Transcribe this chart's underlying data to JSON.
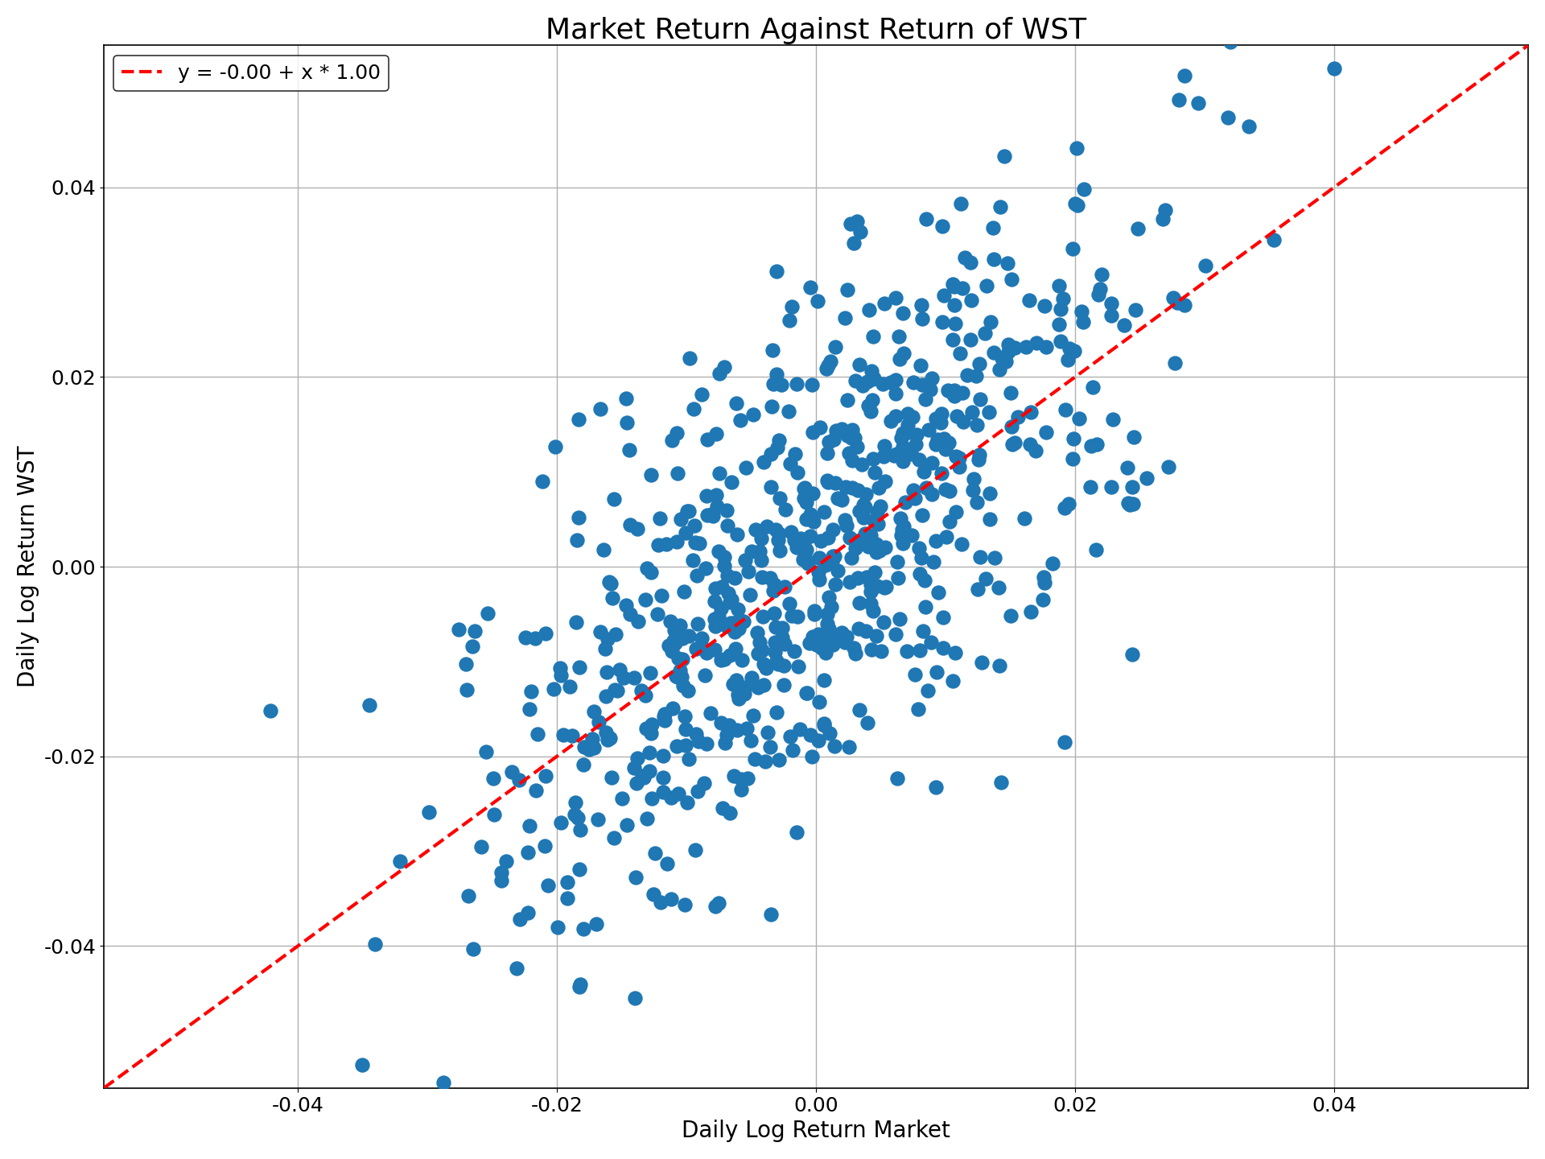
{
  "title": "Market Return Against Return of WST",
  "xlabel": "Daily Log Return Market",
  "ylabel": "Daily Log Return WST",
  "legend_label": "y = -0.00 + x * 1.00",
  "intercept": -0.0,
  "slope": 1.0,
  "xlim": [
    -0.055,
    0.055
  ],
  "ylim": [
    -0.055,
    0.055
  ],
  "xticks": [
    -0.04,
    -0.02,
    0.0,
    0.02,
    0.04
  ],
  "yticks": [
    -0.04,
    -0.02,
    0.0,
    0.02,
    0.04
  ],
  "scatter_color": "#1f77b4",
  "line_color": "#ff0000",
  "dot_size": 150,
  "n_points": 750,
  "seed": 42,
  "market_std": 0.013,
  "noise_std": 0.013,
  "title_fontsize": 26,
  "label_fontsize": 20,
  "tick_fontsize": 18,
  "legend_fontsize": 18,
  "background_color": "#ffffff",
  "grid_color": "#b0b0b0"
}
